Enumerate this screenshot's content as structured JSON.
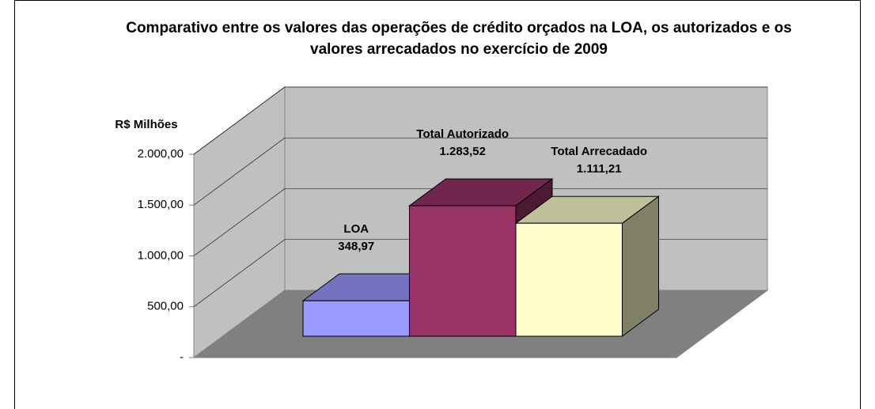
{
  "chart_data": {
    "type": "bar3d",
    "title": "Comparativo entre os valores das operações de crédito orçados na LOA, os autorizados e os valores arrecadados no exercício de 2009",
    "y_axis_label": "R$ Milhões",
    "categories": [
      "LOA",
      "Total Autorizado",
      "Total Arrecadado"
    ],
    "values": [
      348.97,
      1283.52,
      1111.21
    ],
    "value_labels": [
      "348,97",
      "1.283,52",
      "1.111,21"
    ],
    "colors": [
      "#9999ff",
      "#993366",
      "#ffffcc"
    ],
    "ylim": [
      0,
      2000
    ],
    "yticks": [
      {
        "value": 0,
        "label": "-"
      },
      {
        "value": 500,
        "label": "500,00"
      },
      {
        "value": 1000,
        "label": "1.000,00"
      },
      {
        "value": 1500,
        "label": "1.500,00"
      },
      {
        "value": 2000,
        "label": "2.000,00"
      }
    ],
    "grid": true
  }
}
